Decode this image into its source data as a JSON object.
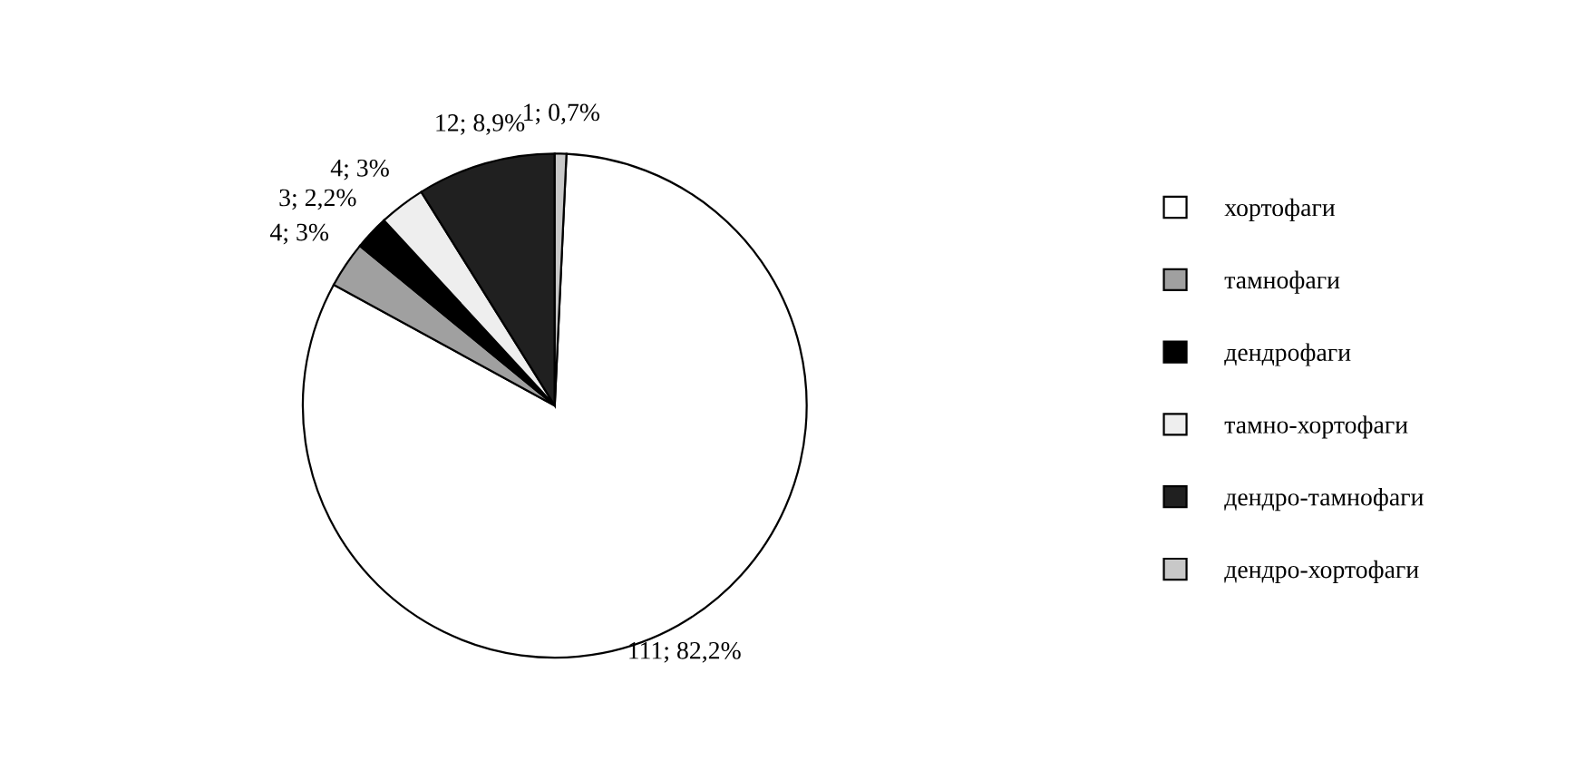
{
  "chart_data": {
    "type": "pie",
    "categories": [
      "хортофаги",
      "тамнофаги",
      "дендрофаги",
      "тамно-хортофаги",
      "дендро-тамнофаги",
      "дендро-хортофаги"
    ],
    "values": [
      111,
      4,
      3,
      4,
      12,
      1
    ],
    "colors": [
      "#ffffff",
      "#a0a0a0",
      "#000000",
      "#eeeeee",
      "#202020",
      "#c8c8c8"
    ],
    "value_labels": [
      "111; 82,2%",
      "4; 3%",
      "3; 2,2%",
      "4; 3%",
      "12; 8,9%",
      "1; 0,7%"
    ],
    "legend": "right"
  }
}
